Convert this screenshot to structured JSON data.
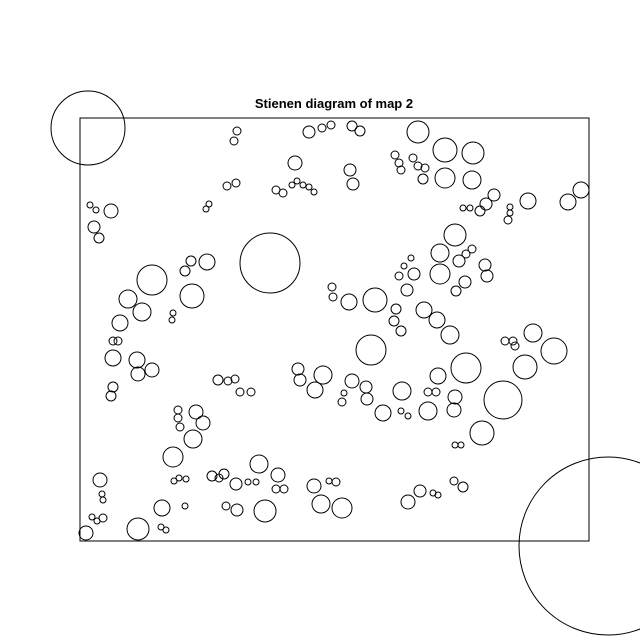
{
  "diagram": {
    "title": "Stienen diagram of map 2",
    "type": "stienen-diagram",
    "frame_color": "#000000",
    "circle_color": "#000000",
    "background": "#ffffff"
  }
}
